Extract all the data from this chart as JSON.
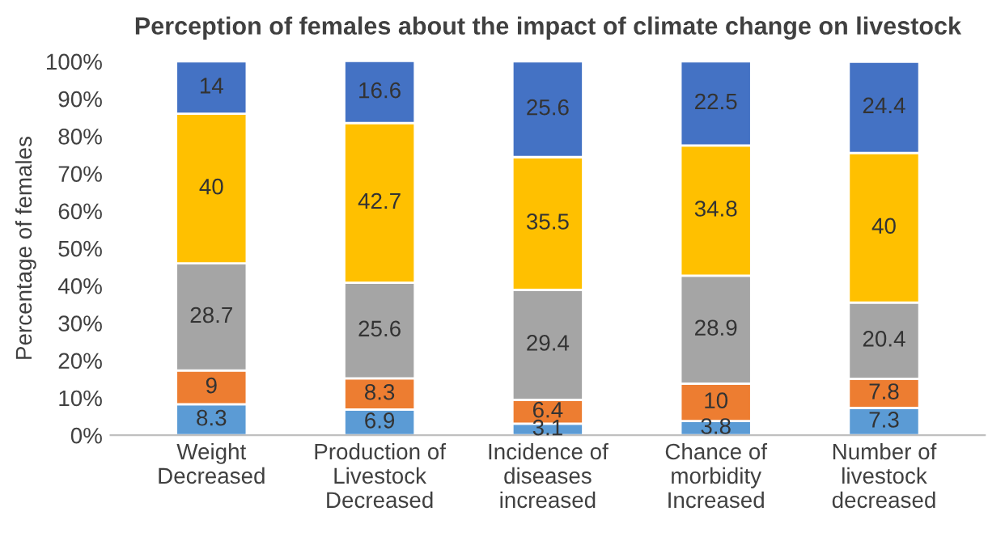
{
  "chart_data": {
    "type": "bar",
    "title": "Perception of females about the impact of climate change on livestock",
    "ylabel": "Percentage of females",
    "categories": [
      "Weight\nDecreased",
      "Production of\nLivestock\nDecreased",
      "Incidence of\ndiseases\nincreased",
      "Chance of\nmorbidity\nIncreased",
      "Number of\nlivestock\ndecreased"
    ],
    "stacked": true,
    "data_labels": true,
    "series": [
      {
        "color": "#5b9bd5",
        "values": [
          8.3,
          6.9,
          3.1,
          3.8,
          7.3
        ]
      },
      {
        "color": "#ed7d31",
        "values": [
          9,
          8.3,
          6.4,
          10,
          7.8
        ]
      },
      {
        "color": "#a5a5a5",
        "values": [
          28.7,
          25.6,
          29.4,
          28.9,
          20.4
        ]
      },
      {
        "color": "#ffc000",
        "values": [
          40,
          42.7,
          35.5,
          34.8,
          40
        ]
      },
      {
        "color": "#4472c4",
        "values": [
          14,
          16.6,
          25.6,
          22.5,
          24.4
        ]
      }
    ],
    "ylim": [
      0,
      100
    ],
    "yticks": [
      {
        "value": 0,
        "label": "0%"
      },
      {
        "value": 10,
        "label": "10%"
      },
      {
        "value": 20,
        "label": "20%"
      },
      {
        "value": 30,
        "label": "30%"
      },
      {
        "value": 40,
        "label": "40%"
      },
      {
        "value": 50,
        "label": "50%"
      },
      {
        "value": 60,
        "label": "60%"
      },
      {
        "value": 70,
        "label": "70%"
      },
      {
        "value": 80,
        "label": "80%"
      },
      {
        "value": 90,
        "label": "90%"
      },
      {
        "value": 100,
        "label": "100%"
      }
    ]
  }
}
